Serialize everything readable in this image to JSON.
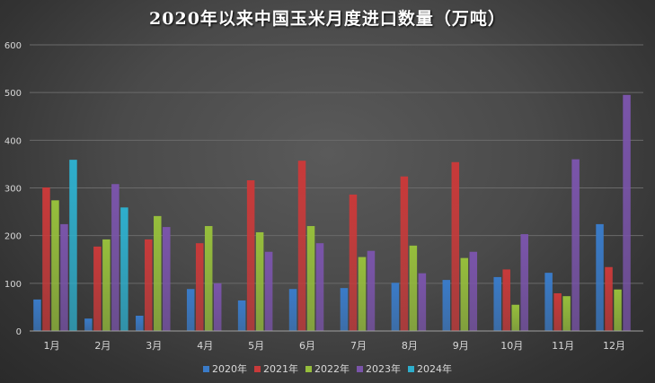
{
  "chart_data": {
    "type": "bar",
    "title": "2020年以来中国玉米月度进口数量（万吨）",
    "xlabel": "",
    "ylabel": "",
    "ylim": [
      0,
      600
    ],
    "yticks": [
      0,
      100,
      200,
      300,
      400,
      500,
      600
    ],
    "grid": true,
    "legend_position": "bottom",
    "categories": [
      "1月",
      "2月",
      "3月",
      "4月",
      "5月",
      "6月",
      "7月",
      "8月",
      "9月",
      "10月",
      "11月",
      "12月"
    ],
    "series": [
      {
        "name": "2020年",
        "color": "#3a7bc8",
        "values": [
          66,
          26,
          32,
          88,
          64,
          88,
          90,
          101,
          107,
          113,
          122,
          224
        ]
      },
      {
        "name": "2021年",
        "color": "#c83a3a",
        "values": [
          301,
          177,
          192,
          184,
          316,
          357,
          286,
          324,
          354,
          129,
          79,
          134
        ]
      },
      {
        "name": "2022年",
        "color": "#96be3c",
        "values": [
          274,
          192,
          241,
          220,
          207,
          220,
          155,
          179,
          153,
          55,
          73,
          87
        ]
      },
      {
        "name": "2023年",
        "color": "#7a54aa",
        "values": [
          224,
          308,
          218,
          100,
          166,
          184,
          168,
          121,
          166,
          203,
          360,
          495
        ]
      },
      {
        "name": "2024年",
        "color": "#2eaecc",
        "values": [
          359,
          259,
          null,
          null,
          null,
          null,
          null,
          null,
          null,
          null,
          null,
          null
        ]
      }
    ]
  }
}
